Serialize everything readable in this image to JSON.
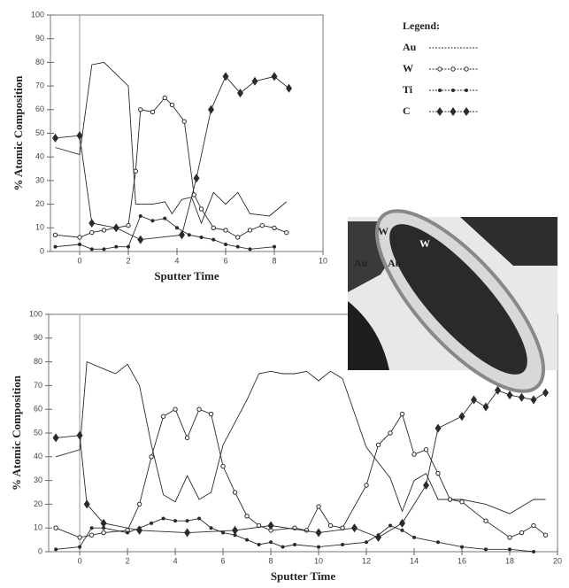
{
  "chart_data": [
    {
      "type": "line",
      "x_label": "Sputter Time",
      "y_label": "% Atomic Composition",
      "xlim": [
        -1.2,
        10
      ],
      "ylim": [
        0,
        100
      ],
      "xticks": [
        0,
        2,
        4,
        6,
        8,
        10
      ],
      "yticks": [
        0,
        10,
        20,
        30,
        40,
        50,
        60,
        70,
        80,
        90,
        100
      ],
      "legend": "upper right",
      "legend_title": "Legend:",
      "series": [
        {
          "name": "Au",
          "color": "#2a2a2a",
          "marker": "none",
          "x": [
            -1,
            0,
            0.5,
            1,
            2,
            2.3,
            3,
            3.5,
            3.8,
            4.2,
            4.6,
            5,
            5.5,
            6,
            6.5,
            7,
            7.8,
            8.5
          ],
          "values": [
            44,
            41,
            79,
            80,
            70,
            20,
            20,
            21,
            16,
            22,
            23,
            12,
            25,
            20,
            25,
            16,
            15,
            21
          ]
        },
        {
          "name": "W",
          "color": "#2a2a2a",
          "marker": "circle",
          "x": [
            -1,
            0,
            0.5,
            1,
            2,
            2.3,
            2.5,
            3,
            3.5,
            3.8,
            4.3,
            4.7,
            5,
            5.5,
            6,
            6.5,
            7,
            7.5,
            8,
            8.5
          ],
          "values": [
            7,
            6,
            8,
            9,
            11,
            34,
            60,
            59,
            65,
            62,
            55,
            24,
            18,
            10,
            9,
            6,
            9,
            11,
            10,
            8
          ]
        },
        {
          "name": "Ti",
          "color": "#2a2a2a",
          "marker": "dot",
          "x": [
            -1,
            0,
            0.5,
            1,
            1.5,
            2,
            2.5,
            3,
            3.5,
            4,
            4.5,
            5,
            5.5,
            6,
            6.5,
            7,
            8
          ],
          "values": [
            2,
            3,
            1,
            1,
            2,
            2,
            15,
            13,
            14,
            10,
            7,
            6,
            5,
            3,
            2,
            1,
            2
          ]
        },
        {
          "name": "C",
          "color": "#2a2a2a",
          "marker": "diamond",
          "x": [
            -1,
            0,
            0.5,
            1.5,
            2.5,
            4.2,
            4.8,
            5.4,
            6,
            6.6,
            7.2,
            8,
            8.6
          ],
          "values": [
            48,
            49,
            12,
            10,
            5,
            7,
            31,
            60,
            74,
            67,
            72,
            74,
            69
          ]
        }
      ]
    },
    {
      "type": "line",
      "x_label": "Sputter Time",
      "y_label": "% Atomic Composition",
      "xlim": [
        -1.3,
        20
      ],
      "ylim": [
        0,
        100
      ],
      "xticks": [
        0,
        2,
        4,
        6,
        8,
        10,
        12,
        14,
        16,
        18,
        20
      ],
      "yticks": [
        0,
        10,
        20,
        30,
        40,
        50,
        60,
        70,
        80,
        90,
        100
      ],
      "series": [
        {
          "name": "Au",
          "color": "#2a2a2a",
          "marker": "none",
          "x": [
            -1,
            0,
            0.3,
            1,
            1.5,
            2,
            2.5,
            3,
            3.5,
            4,
            4.5,
            5,
            5.5,
            6,
            7,
            7.5,
            8,
            8.5,
            9,
            9.5,
            10,
            10.5,
            11,
            12,
            13,
            13.5,
            14,
            14.5,
            15,
            16,
            17,
            18,
            19,
            19.5
          ],
          "values": [
            40,
            43,
            80,
            77,
            75,
            79,
            70,
            45,
            24,
            21,
            32,
            22,
            25,
            45,
            64,
            75,
            76,
            75,
            75,
            76,
            72,
            76,
            73,
            44,
            31,
            17,
            30,
            33,
            22,
            22,
            20,
            16,
            22,
            22
          ]
        },
        {
          "name": "W",
          "color": "#2a2a2a",
          "marker": "circle",
          "x": [
            -1,
            0,
            0.5,
            1,
            2,
            2.5,
            3,
            3.5,
            4,
            4.5,
            5,
            5.5,
            6,
            6.5,
            7,
            7.5,
            8,
            9,
            9.5,
            10,
            10.5,
            11,
            12,
            12.5,
            13,
            13.5,
            14,
            14.5,
            15,
            15.5,
            16,
            17,
            18,
            18.5,
            19,
            19.5
          ],
          "values": [
            10,
            6,
            7,
            8,
            9,
            20,
            40,
            57,
            60,
            48,
            60,
            58,
            36,
            25,
            15,
            11,
            9,
            10,
            9,
            19,
            11,
            10,
            28,
            45,
            50,
            58,
            41,
            43,
            33,
            22,
            21,
            13,
            6,
            8,
            11,
            7
          ]
        },
        {
          "name": "Ti",
          "color": "#2a2a2a",
          "marker": "dot",
          "x": [
            -1,
            0,
            0.5,
            1,
            2,
            2.5,
            3,
            3.5,
            4,
            4.5,
            5,
            5.5,
            6,
            6.5,
            7,
            7.5,
            8,
            8.5,
            9,
            10,
            11,
            12,
            12.5,
            13,
            13.5,
            14,
            15,
            16,
            17,
            18,
            19
          ],
          "values": [
            1,
            2,
            10,
            10,
            8,
            10,
            12,
            14,
            13,
            13,
            14,
            10,
            8,
            7,
            5,
            3,
            4,
            2,
            3,
            2,
            3,
            4,
            7,
            11,
            9,
            6,
            4,
            2,
            1,
            1,
            0
          ]
        },
        {
          "name": "C",
          "color": "#2a2a2a",
          "marker": "diamond",
          "x": [
            -1,
            0,
            0.3,
            1,
            2.5,
            4.5,
            6.5,
            8,
            10,
            11.5,
            12.5,
            13.5,
            14.5,
            15,
            16,
            16.5,
            17,
            17.5,
            18,
            18.5,
            19,
            19.5
          ],
          "values": [
            48,
            49,
            20,
            12,
            9,
            8,
            9,
            11,
            8,
            10,
            6,
            12,
            28,
            52,
            57,
            64,
            61,
            68,
            66,
            65,
            64,
            67
          ]
        }
      ]
    }
  ],
  "micrograph": {
    "labels": [
      "W",
      "W",
      "Au",
      "Au"
    ]
  }
}
